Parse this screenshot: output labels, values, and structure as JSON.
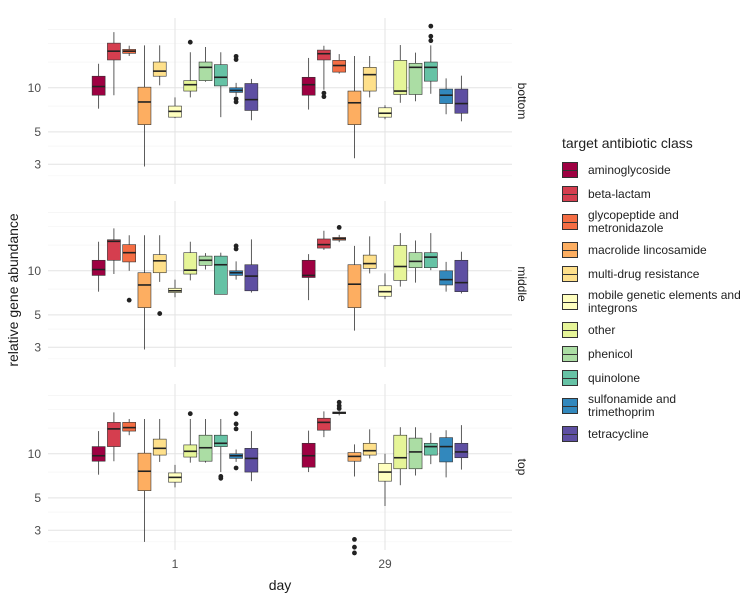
{
  "chart_data": {
    "type": "boxplot",
    "xlabel": "day",
    "ylabel": "relative gene abundance",
    "x": [
      "1",
      "29"
    ],
    "y_scale": "log",
    "y_ticks": [
      3,
      5,
      10
    ],
    "ylim": [
      2.2,
      30
    ],
    "grid": true,
    "legend": {
      "title": "target antibiotic class",
      "placement": "right"
    },
    "series": [
      {
        "name": "aminoglycoside",
        "color": "#9E0142"
      },
      {
        "name": "beta-lactam",
        "color": "#D53E4F"
      },
      {
        "name": "glycopeptide and metronidazole",
        "color": "#F46D43"
      },
      {
        "name": "macrolide lincosamide",
        "color": "#FDAE61"
      },
      {
        "name": "multi-drug resistance",
        "color": "#FEE08B"
      },
      {
        "name": "mobile genetic elements and integrons",
        "color": "#FFFFBF"
      },
      {
        "name": "other",
        "color": "#E6F598"
      },
      {
        "name": "phenicol",
        "color": "#ABDDA4"
      },
      {
        "name": "quinolone",
        "color": "#66C2A5"
      },
      {
        "name": "sulfonamide and trimethoprim",
        "color": "#3288BD"
      },
      {
        "name": "tetracycline",
        "color": "#5E4FA2"
      }
    ],
    "facets": [
      {
        "label": "bottom",
        "groups": [
          {
            "day": "1",
            "boxes": [
              {
                "class": 0,
                "min": 7.2,
                "q1": 8.9,
                "median": 10.2,
                "q3": 12.0,
                "max": 14.6,
                "outliers": []
              },
              {
                "class": 1,
                "min": 8.9,
                "q1": 15.5,
                "median": 17.8,
                "q3": 20.2,
                "max": 24.0,
                "outliers": []
              },
              {
                "class": 2,
                "min": 16.5,
                "q1": 17.2,
                "median": 17.8,
                "q3": 18.3,
                "max": 19.4,
                "outliers": []
              },
              {
                "class": 3,
                "min": 2.9,
                "q1": 5.6,
                "median": 8.0,
                "q3": 10.1,
                "max": 19.5,
                "outliers": []
              },
              {
                "class": 4,
                "min": 10.4,
                "q1": 12.0,
                "median": 13.0,
                "q3": 15.0,
                "max": 19.5,
                "outliers": []
              },
              {
                "class": 5,
                "min": 6.2,
                "q1": 6.3,
                "median": 6.9,
                "q3": 7.5,
                "max": 8.6,
                "outliers": []
              },
              {
                "class": 6,
                "min": 8.6,
                "q1": 9.5,
                "median": 10.5,
                "q3": 11.2,
                "max": 17.5,
                "outliers": [
                  20.5
                ]
              },
              {
                "class": 7,
                "min": 11.0,
                "q1": 11.2,
                "median": 13.8,
                "q3": 15.0,
                "max": 19.0,
                "outliers": []
              },
              {
                "class": 8,
                "min": 6.3,
                "q1": 10.3,
                "median": 11.8,
                "q3": 14.4,
                "max": 17.5,
                "outliers": []
              },
              {
                "class": 9,
                "min": 8.8,
                "q1": 9.3,
                "median": 9.6,
                "q3": 10.0,
                "max": 10.8,
                "outliers": [
                  8.0,
                  8.4,
                  15.6,
                  16.4
                ]
              },
              {
                "class": 10,
                "min": 6.0,
                "q1": 7.0,
                "median": 8.3,
                "q3": 10.7,
                "max": 11.5,
                "outliers": []
              }
            ]
          },
          {
            "day": "29",
            "boxes": [
              {
                "class": 0,
                "min": 7.1,
                "q1": 8.9,
                "median": 10.5,
                "q3": 11.8,
                "max": 16.0,
                "outliers": []
              },
              {
                "class": 1,
                "min": 9.7,
                "q1": 15.5,
                "median": 17.1,
                "q3": 18.1,
                "max": 19.4,
                "outliers": [
                  8.7,
                  9.2
                ]
              },
              {
                "class": 2,
                "min": 12.5,
                "q1": 12.8,
                "median": 14.2,
                "q3": 15.4,
                "max": 17.0,
                "outliers": []
              },
              {
                "class": 3,
                "min": 3.3,
                "q1": 5.6,
                "median": 7.9,
                "q3": 9.5,
                "max": 16.5,
                "outliers": []
              },
              {
                "class": 4,
                "min": 8.6,
                "q1": 9.5,
                "median": 12.3,
                "q3": 13.8,
                "max": 16.5,
                "outliers": []
              },
              {
                "class": 5,
                "min": 6.1,
                "q1": 6.3,
                "median": 6.7,
                "q3": 7.3,
                "max": 7.6,
                "outliers": []
              },
              {
                "class": 6,
                "min": 7.9,
                "q1": 9.0,
                "median": 9.5,
                "q3": 15.4,
                "max": 19.6,
                "outliers": []
              },
              {
                "class": 7,
                "min": 8.1,
                "q1": 9.0,
                "median": 13.8,
                "q3": 14.7,
                "max": 17.4,
                "outliers": []
              },
              {
                "class": 8,
                "min": 9.1,
                "q1": 11.1,
                "median": 13.8,
                "q3": 15.0,
                "max": 19.5,
                "outliers": [
                  21.0,
                  22.5,
                  26.4
                ]
              },
              {
                "class": 9,
                "min": 6.6,
                "q1": 7.8,
                "median": 8.9,
                "q3": 9.8,
                "max": 11.6,
                "outliers": []
              },
              {
                "class": 10,
                "min": 5.9,
                "q1": 6.7,
                "median": 7.8,
                "q3": 9.8,
                "max": 12.1,
                "outliers": []
              }
            ]
          }
        ]
      },
      {
        "label": "middle",
        "groups": [
          {
            "day": "1",
            "boxes": [
              {
                "class": 0,
                "min": 7.2,
                "q1": 9.3,
                "median": 10.2,
                "q3": 11.8,
                "max": 15.8,
                "outliers": []
              },
              {
                "class": 1,
                "min": 9.5,
                "q1": 11.8,
                "median": 15.9,
                "q3": 16.3,
                "max": 19.5,
                "outliers": []
              },
              {
                "class": 2,
                "min": 10.0,
                "q1": 11.5,
                "median": 13.3,
                "q3": 15.1,
                "max": 17.5,
                "outliers": [
                  6.3
                ]
              },
              {
                "class": 3,
                "min": 2.9,
                "q1": 5.6,
                "median": 8.0,
                "q3": 9.7,
                "max": 17.5,
                "outliers": []
              },
              {
                "class": 4,
                "min": 8.4,
                "q1": 9.7,
                "median": 11.7,
                "q3": 12.9,
                "max": 17.5,
                "outliers": [
                  5.1
                ]
              },
              {
                "class": 5,
                "min": 6.6,
                "q1": 7.1,
                "median": 7.3,
                "q3": 7.6,
                "max": 8.7,
                "outliers": []
              },
              {
                "class": 6,
                "min": 8.6,
                "q1": 9.5,
                "median": 10.1,
                "q3": 13.3,
                "max": 15.8,
                "outliers": []
              },
              {
                "class": 7,
                "min": 10.2,
                "q1": 10.9,
                "median": 11.8,
                "q3": 12.6,
                "max": 13.2,
                "outliers": []
              },
              {
                "class": 8,
                "min": 6.9,
                "q1": 6.9,
                "median": 11.0,
                "q3": 12.6,
                "max": 13.3,
                "outliers": []
              },
              {
                "class": 9,
                "min": 8.7,
                "q1": 9.3,
                "median": 9.7,
                "q3": 10.0,
                "max": 11.6,
                "outliers": [
                  14.1,
                  14.8
                ]
              },
              {
                "class": 10,
                "min": 7.1,
                "q1": 7.3,
                "median": 9.2,
                "q3": 11.0,
                "max": 16.4,
                "outliers": []
              }
            ]
          },
          {
            "day": "29",
            "boxes": [
              {
                "class": 0,
                "min": 6.3,
                "q1": 9.0,
                "median": 9.3,
                "q3": 11.8,
                "max": 13.0,
                "outliers": []
              },
              {
                "class": 1,
                "min": 13.9,
                "q1": 14.3,
                "median": 15.1,
                "q3": 16.5,
                "max": 18.8,
                "outliers": []
              },
              {
                "class": 2,
                "min": 15.7,
                "q1": 16.2,
                "median": 16.6,
                "q3": 16.9,
                "max": 17.6,
                "outliers": [
                  19.8
                ]
              },
              {
                "class": 3,
                "min": 3.9,
                "q1": 5.6,
                "median": 8.1,
                "q3": 11.0,
                "max": 14.8,
                "outliers": []
              },
              {
                "class": 4,
                "min": 9.6,
                "q1": 10.4,
                "median": 11.2,
                "q3": 12.8,
                "max": 17.2,
                "outliers": []
              },
              {
                "class": 5,
                "min": 6.4,
                "q1": 6.7,
                "median": 7.2,
                "q3": 7.9,
                "max": 9.6,
                "outliers": []
              },
              {
                "class": 6,
                "min": 7.8,
                "q1": 8.6,
                "median": 10.7,
                "q3": 14.9,
                "max": 18.1,
                "outliers": []
              },
              {
                "class": 7,
                "min": 8.3,
                "q1": 10.5,
                "median": 11.6,
                "q3": 13.3,
                "max": 16.1,
                "outliers": []
              },
              {
                "class": 8,
                "min": 10.1,
                "q1": 10.5,
                "median": 12.4,
                "q3": 13.3,
                "max": 18.1,
                "outliers": []
              },
              {
                "class": 9,
                "min": 7.2,
                "q1": 8.0,
                "median": 8.7,
                "q3": 10.0,
                "max": 11.5,
                "outliers": []
              },
              {
                "class": 10,
                "min": 7.0,
                "q1": 7.2,
                "median": 8.3,
                "q3": 11.8,
                "max": 13.5,
                "outliers": []
              }
            ]
          }
        ]
      },
      {
        "label": "top",
        "groups": [
          {
            "day": "1",
            "boxes": [
              {
                "class": 0,
                "min": 7.2,
                "q1": 8.9,
                "median": 9.7,
                "q3": 11.2,
                "max": 14.3,
                "outliers": []
              },
              {
                "class": 1,
                "min": 8.9,
                "q1": 11.2,
                "median": 14.8,
                "q3": 16.4,
                "max": 19.2,
                "outliers": []
              },
              {
                "class": 2,
                "min": 13.4,
                "q1": 14.3,
                "median": 15.1,
                "q3": 16.4,
                "max": 17.3,
                "outliers": []
              },
              {
                "class": 3,
                "min": 2.5,
                "q1": 5.6,
                "median": 7.6,
                "q3": 10.1,
                "max": 17.3,
                "outliers": []
              },
              {
                "class": 4,
                "min": 8.8,
                "q1": 9.8,
                "median": 10.9,
                "q3": 12.6,
                "max": 17.3,
                "outliers": []
              },
              {
                "class": 5,
                "min": 5.9,
                "q1": 6.4,
                "median": 6.9,
                "q3": 7.4,
                "max": 8.4,
                "outliers": []
              },
              {
                "class": 6,
                "min": 8.7,
                "q1": 9.5,
                "median": 10.4,
                "q3": 11.5,
                "max": 17.3,
                "outliers": [
                  18.8
                ]
              },
              {
                "class": 7,
                "min": 8.7,
                "q1": 8.9,
                "median": 11.0,
                "q3": 13.4,
                "max": 17.3,
                "outliers": []
              },
              {
                "class": 8,
                "min": 7.5,
                "q1": 11.2,
                "median": 11.8,
                "q3": 13.4,
                "max": 17.3,
                "outliers": [
                  6.8,
                  7.0
                ]
              },
              {
                "class": 9,
                "min": 8.8,
                "q1": 9.3,
                "median": 9.7,
                "q3": 10.0,
                "max": 10.7,
                "outliers": [
                  8.0,
                  14.8,
                  16.0,
                  18.8
                ]
              },
              {
                "class": 10,
                "min": 6.5,
                "q1": 7.5,
                "median": 9.3,
                "q3": 10.9,
                "max": 14.3,
                "outliers": []
              }
            ]
          },
          {
            "day": "29",
            "boxes": [
              {
                "class": 0,
                "min": 7.5,
                "q1": 8.1,
                "median": 9.7,
                "q3": 11.8,
                "max": 14.4,
                "outliers": []
              },
              {
                "class": 1,
                "min": 13.0,
                "q1": 14.5,
                "median": 16.4,
                "q3": 17.5,
                "max": 19.5,
                "outliers": []
              },
              {
                "class": 2,
                "min": 18.3,
                "q1": 18.8,
                "median": 19.1,
                "q3": 19.3,
                "max": 19.6,
                "outliers": [
                  20.4,
                  21.3,
                  22.5
                ]
              },
              {
                "class": 3,
                "min": 7.0,
                "q1": 8.9,
                "median": 9.6,
                "q3": 10.2,
                "max": 11.6,
                "outliers": [
                  2.1,
                  2.3,
                  2.6
                ]
              },
              {
                "class": 4,
                "min": 9.3,
                "q1": 9.8,
                "median": 10.5,
                "q3": 11.8,
                "max": 14.7,
                "outliers": []
              },
              {
                "class": 5,
                "min": 4.4,
                "q1": 6.5,
                "median": 7.5,
                "q3": 8.6,
                "max": 10.0,
                "outliers": []
              },
              {
                "class": 6,
                "min": 6.1,
                "q1": 7.9,
                "median": 9.4,
                "q3": 13.4,
                "max": 15.2,
                "outliers": []
              },
              {
                "class": 7,
                "min": 7.1,
                "q1": 7.9,
                "median": 10.3,
                "q3": 12.8,
                "max": 15.2,
                "outliers": []
              },
              {
                "class": 8,
                "min": 8.5,
                "q1": 9.8,
                "median": 11.2,
                "q3": 11.8,
                "max": 13.9,
                "outliers": []
              },
              {
                "class": 9,
                "min": 6.9,
                "q1": 8.8,
                "median": 11.2,
                "q3": 12.9,
                "max": 14.5,
                "outliers": []
              },
              {
                "class": 10,
                "min": 7.8,
                "q1": 9.4,
                "median": 10.3,
                "q3": 11.8,
                "max": 15.7,
                "outliers": []
              }
            ]
          }
        ]
      }
    ]
  }
}
